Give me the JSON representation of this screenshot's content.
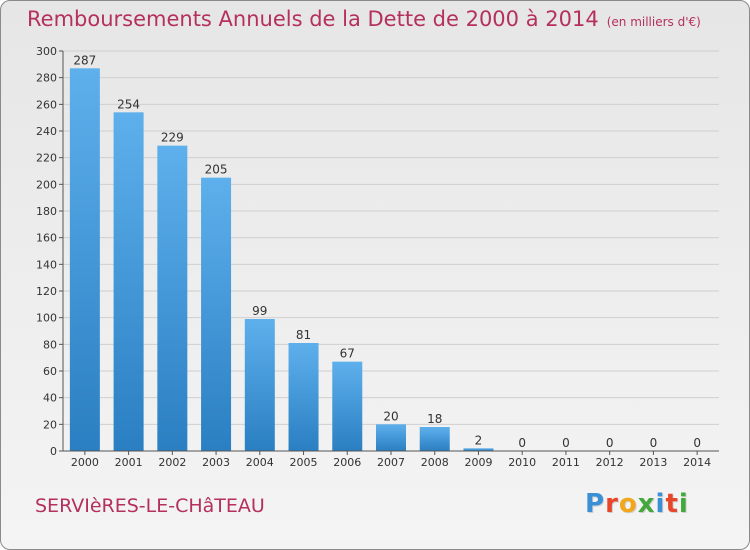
{
  "header": {
    "title": "Remboursements Annuels de la Dette de 2000 à 2014",
    "unit": "(en milliers d'€)"
  },
  "footer": {
    "commune": "SERVIèRES-LE-CHâTEAU",
    "logo_text": "Proxiti",
    "logo_colors": [
      "#3a8fd6",
      "#e8462a",
      "#f2a71b",
      "#43a83c",
      "#3a8fd6",
      "#e8462a",
      "#43a83c"
    ]
  },
  "colors": {
    "title": "#b5305c",
    "bar_top": "#5eb0ec",
    "bar_bottom": "#2a7fc2",
    "grid": "#cfcfcf"
  },
  "chart_data": {
    "type": "bar",
    "title": "Remboursements Annuels de la Dette de 2000 à 2014",
    "subtitle": "(en milliers d'€)",
    "xlabel": "",
    "ylabel": "",
    "categories": [
      "2000",
      "2001",
      "2002",
      "2003",
      "2004",
      "2005",
      "2006",
      "2007",
      "2008",
      "2009",
      "2010",
      "2011",
      "2012",
      "2013",
      "2014"
    ],
    "values": [
      287,
      254,
      229,
      205,
      99,
      81,
      67,
      20,
      18,
      2,
      0,
      0,
      0,
      0,
      0
    ],
    "ylim": [
      0,
      300
    ],
    "yticks": [
      0,
      20,
      40,
      60,
      80,
      100,
      120,
      140,
      160,
      180,
      200,
      220,
      240,
      260,
      280,
      300
    ],
    "grid": true,
    "data_labels": true
  }
}
